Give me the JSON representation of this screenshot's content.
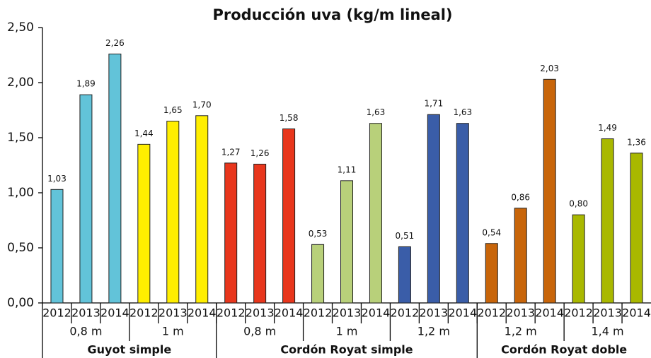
{
  "chart_data": {
    "type": "bar",
    "title": "Producción uva (kg/m lineal)",
    "ylim": [
      0,
      2.5
    ],
    "yticks": [
      {
        "value": 0,
        "label": "0,00"
      },
      {
        "value": 0.5,
        "label": "0,50"
      },
      {
        "value": 1,
        "label": "1,00"
      },
      {
        "value": 1.5,
        "label": "1,50"
      },
      {
        "value": 2,
        "label": "2,00"
      },
      {
        "value": 2.5,
        "label": "2,50"
      }
    ],
    "groups": [
      {
        "name": "Guyot simple",
        "subgroups": [
          {
            "name": "0,8 m",
            "color": "#62c3d9",
            "categories": [
              "2012",
              "2013",
              "2014"
            ],
            "values": [
              1.03,
              1.89,
              2.26
            ],
            "value_labels": [
              "1,03",
              "1,89",
              "2,26"
            ]
          },
          {
            "name": "1 m",
            "color": "#ffee00",
            "categories": [
              "2012",
              "2013",
              "2014"
            ],
            "values": [
              1.44,
              1.65,
              1.7
            ],
            "value_labels": [
              "1,44",
              "1,65",
              "1,70"
            ]
          }
        ]
      },
      {
        "name": "Cordón Royat simple",
        "subgroups": [
          {
            "name": "0,8 m",
            "color": "#e8361c",
            "categories": [
              "2012",
              "2013",
              "2014"
            ],
            "values": [
              1.27,
              1.26,
              1.58
            ],
            "value_labels": [
              "1,27",
              "1,26",
              "1,58"
            ]
          },
          {
            "name": "1 m",
            "color": "#b8d07a",
            "categories": [
              "2012",
              "2013",
              "2014"
            ],
            "values": [
              0.53,
              1.11,
              1.63
            ],
            "value_labels": [
              "0,53",
              "1,11",
              "1,63"
            ]
          },
          {
            "name": "1,2 m",
            "color": "#3a5da8",
            "categories": [
              "2012",
              "2013",
              "2014"
            ],
            "values": [
              0.51,
              1.71,
              1.63
            ],
            "value_labels": [
              "0,51",
              "1,71",
              "1,63"
            ]
          }
        ]
      },
      {
        "name": "Cordón Royat doble",
        "subgroups": [
          {
            "name": "1,2 m",
            "color": "#c8650a",
            "categories": [
              "2012",
              "2013",
              "2014"
            ],
            "values": [
              0.54,
              0.86,
              2.03
            ],
            "value_labels": [
              "0,54",
              "0,86",
              "2,03"
            ]
          },
          {
            "name": "1,4 m",
            "color": "#a9b800",
            "categories": [
              "2012",
              "2013",
              "2014"
            ],
            "values": [
              0.8,
              1.49,
              1.36
            ],
            "value_labels": [
              "0,80",
              "1,49",
              "1,36"
            ]
          }
        ]
      }
    ]
  }
}
